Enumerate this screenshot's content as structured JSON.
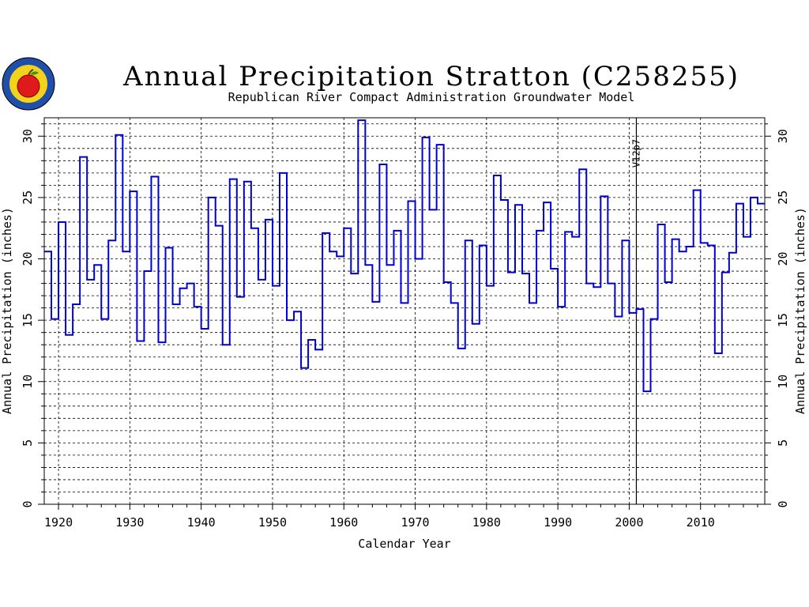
{
  "header": {
    "title": "Annual Precipitation Stratton (C258255)",
    "subtitle": "Republican River Compact Administration Groundwater Model",
    "logo_icon": "rrca-apple-logo-icon"
  },
  "chart_data": {
    "type": "step",
    "title": "Annual Precipitation Stratton (C258255)",
    "subtitle": "Republican River Compact Administration Groundwater Model",
    "xlabel": "Calendar Year",
    "ylabel": "Annual Precipitation (inches)",
    "ylabel_right": "Annual Precipitation (inches)",
    "xlim": [
      1918,
      2019
    ],
    "ylim": [
      0,
      31.5
    ],
    "xticks": [
      1920,
      1930,
      1940,
      1950,
      1960,
      1970,
      1980,
      1990,
      2000,
      2010
    ],
    "yticks": [
      0,
      5,
      10,
      15,
      20,
      25,
      30
    ],
    "grid": true,
    "series_color": "#0000cc",
    "annotation": {
      "x": 2001,
      "label": "V12p7"
    },
    "x": [
      1918,
      1919,
      1920,
      1921,
      1922,
      1923,
      1924,
      1925,
      1926,
      1927,
      1928,
      1929,
      1930,
      1931,
      1932,
      1933,
      1934,
      1935,
      1936,
      1937,
      1938,
      1939,
      1940,
      1941,
      1942,
      1943,
      1944,
      1945,
      1946,
      1947,
      1948,
      1949,
      1950,
      1951,
      1952,
      1953,
      1954,
      1955,
      1956,
      1957,
      1958,
      1959,
      1960,
      1961,
      1962,
      1963,
      1964,
      1965,
      1966,
      1967,
      1968,
      1969,
      1970,
      1971,
      1972,
      1973,
      1974,
      1975,
      1976,
      1977,
      1978,
      1979,
      1980,
      1981,
      1982,
      1983,
      1984,
      1985,
      1986,
      1987,
      1988,
      1989,
      1990,
      1991,
      1992,
      1993,
      1994,
      1995,
      1996,
      1997,
      1998,
      1999,
      2000,
      2001,
      2002,
      2003,
      2004,
      2005,
      2006,
      2007,
      2008,
      2009,
      2010,
      2011,
      2012,
      2013,
      2014,
      2015,
      2016,
      2017,
      2018
    ],
    "values": [
      20.6,
      15.1,
      23.0,
      13.8,
      16.3,
      28.3,
      18.3,
      19.5,
      15.1,
      21.5,
      30.1,
      20.6,
      25.5,
      13.3,
      19.0,
      26.7,
      13.2,
      20.9,
      16.3,
      17.6,
      18.0,
      16.1,
      14.3,
      25.0,
      22.7,
      13.0,
      26.5,
      16.9,
      26.3,
      22.5,
      18.3,
      23.2,
      17.8,
      27.0,
      15.0,
      15.7,
      11.1,
      13.4,
      12.6,
      22.1,
      20.6,
      20.2,
      22.5,
      18.8,
      31.3,
      19.5,
      16.5,
      27.7,
      19.5,
      22.3,
      16.4,
      24.7,
      20.0,
      29.9,
      24.0,
      29.3,
      18.1,
      16.4,
      12.7,
      21.5,
      14.7,
      21.1,
      17.8,
      26.8,
      24.8,
      18.9,
      24.4,
      18.8,
      16.4,
      22.3,
      24.6,
      19.2,
      16.1,
      22.2,
      21.8,
      27.3,
      18.0,
      17.7,
      25.1,
      18.0,
      15.3,
      21.5,
      15.6,
      15.9,
      9.2,
      15.1,
      22.8,
      18.1,
      21.6,
      20.6,
      21.0,
      25.6,
      21.3,
      21.1,
      12.3,
      18.9,
      20.5,
      24.5,
      21.8,
      25.0,
      24.5
    ]
  }
}
